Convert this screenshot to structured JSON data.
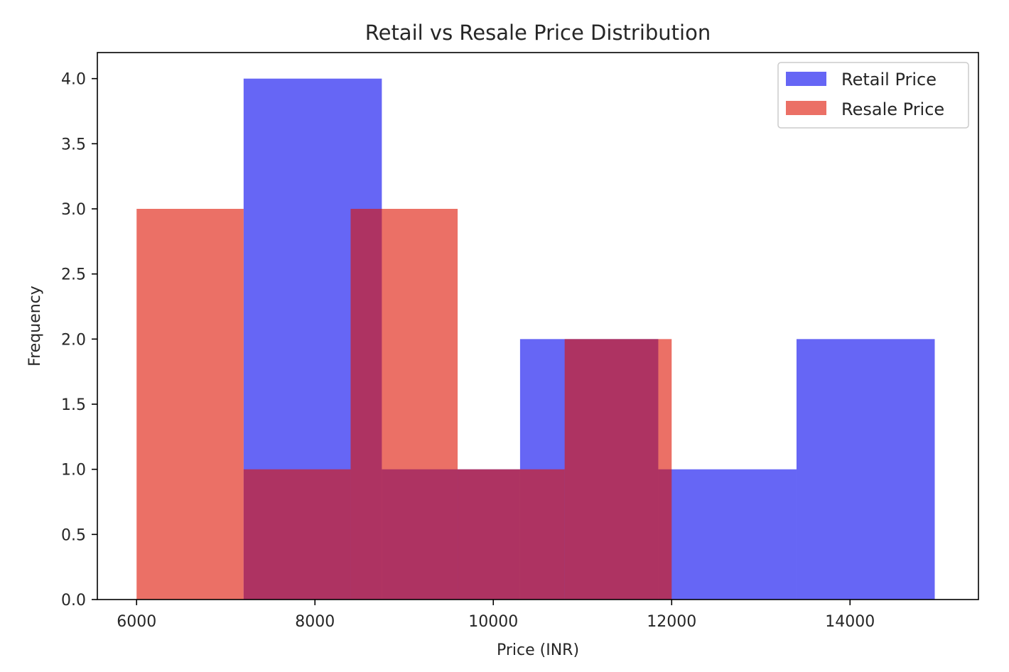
{
  "chart_data": {
    "type": "bar",
    "subtype": "histogram",
    "title": "Retail vs Resale Price Distribution",
    "xlabel": "Price (INR)",
    "ylabel": "Frequency",
    "xlim": [
      5560,
      15440
    ],
    "ylim": [
      0,
      4.2
    ],
    "xticks": [
      6000,
      8000,
      10000,
      12000,
      14000
    ],
    "xtick_labels": [
      "6000",
      "8000",
      "10000",
      "12000",
      "14000"
    ],
    "yticks": [
      0,
      0.5,
      1,
      1.5,
      2,
      2.5,
      3,
      3.5,
      4
    ],
    "ytick_labels": [
      "0.0",
      "0.5",
      "1.0",
      "1.5",
      "2.0",
      "2.5",
      "3.0",
      "3.5",
      "4.0"
    ],
    "grid": false,
    "legend_position": "upper right",
    "series": [
      {
        "name": "Retail Price",
        "color": "#0000ee",
        "opacity": 0.6,
        "bin_edges": [
          7200,
          8750,
          10300,
          11850,
          13400,
          14950
        ],
        "counts": [
          4,
          1,
          2,
          1,
          2
        ]
      },
      {
        "name": "Resale Price",
        "color": "#dd1100",
        "opacity": 0.6,
        "bin_edges": [
          6000,
          7200,
          8400,
          9600,
          10800,
          12000
        ],
        "counts": [
          3,
          1,
          3,
          1,
          2
        ]
      }
    ]
  }
}
